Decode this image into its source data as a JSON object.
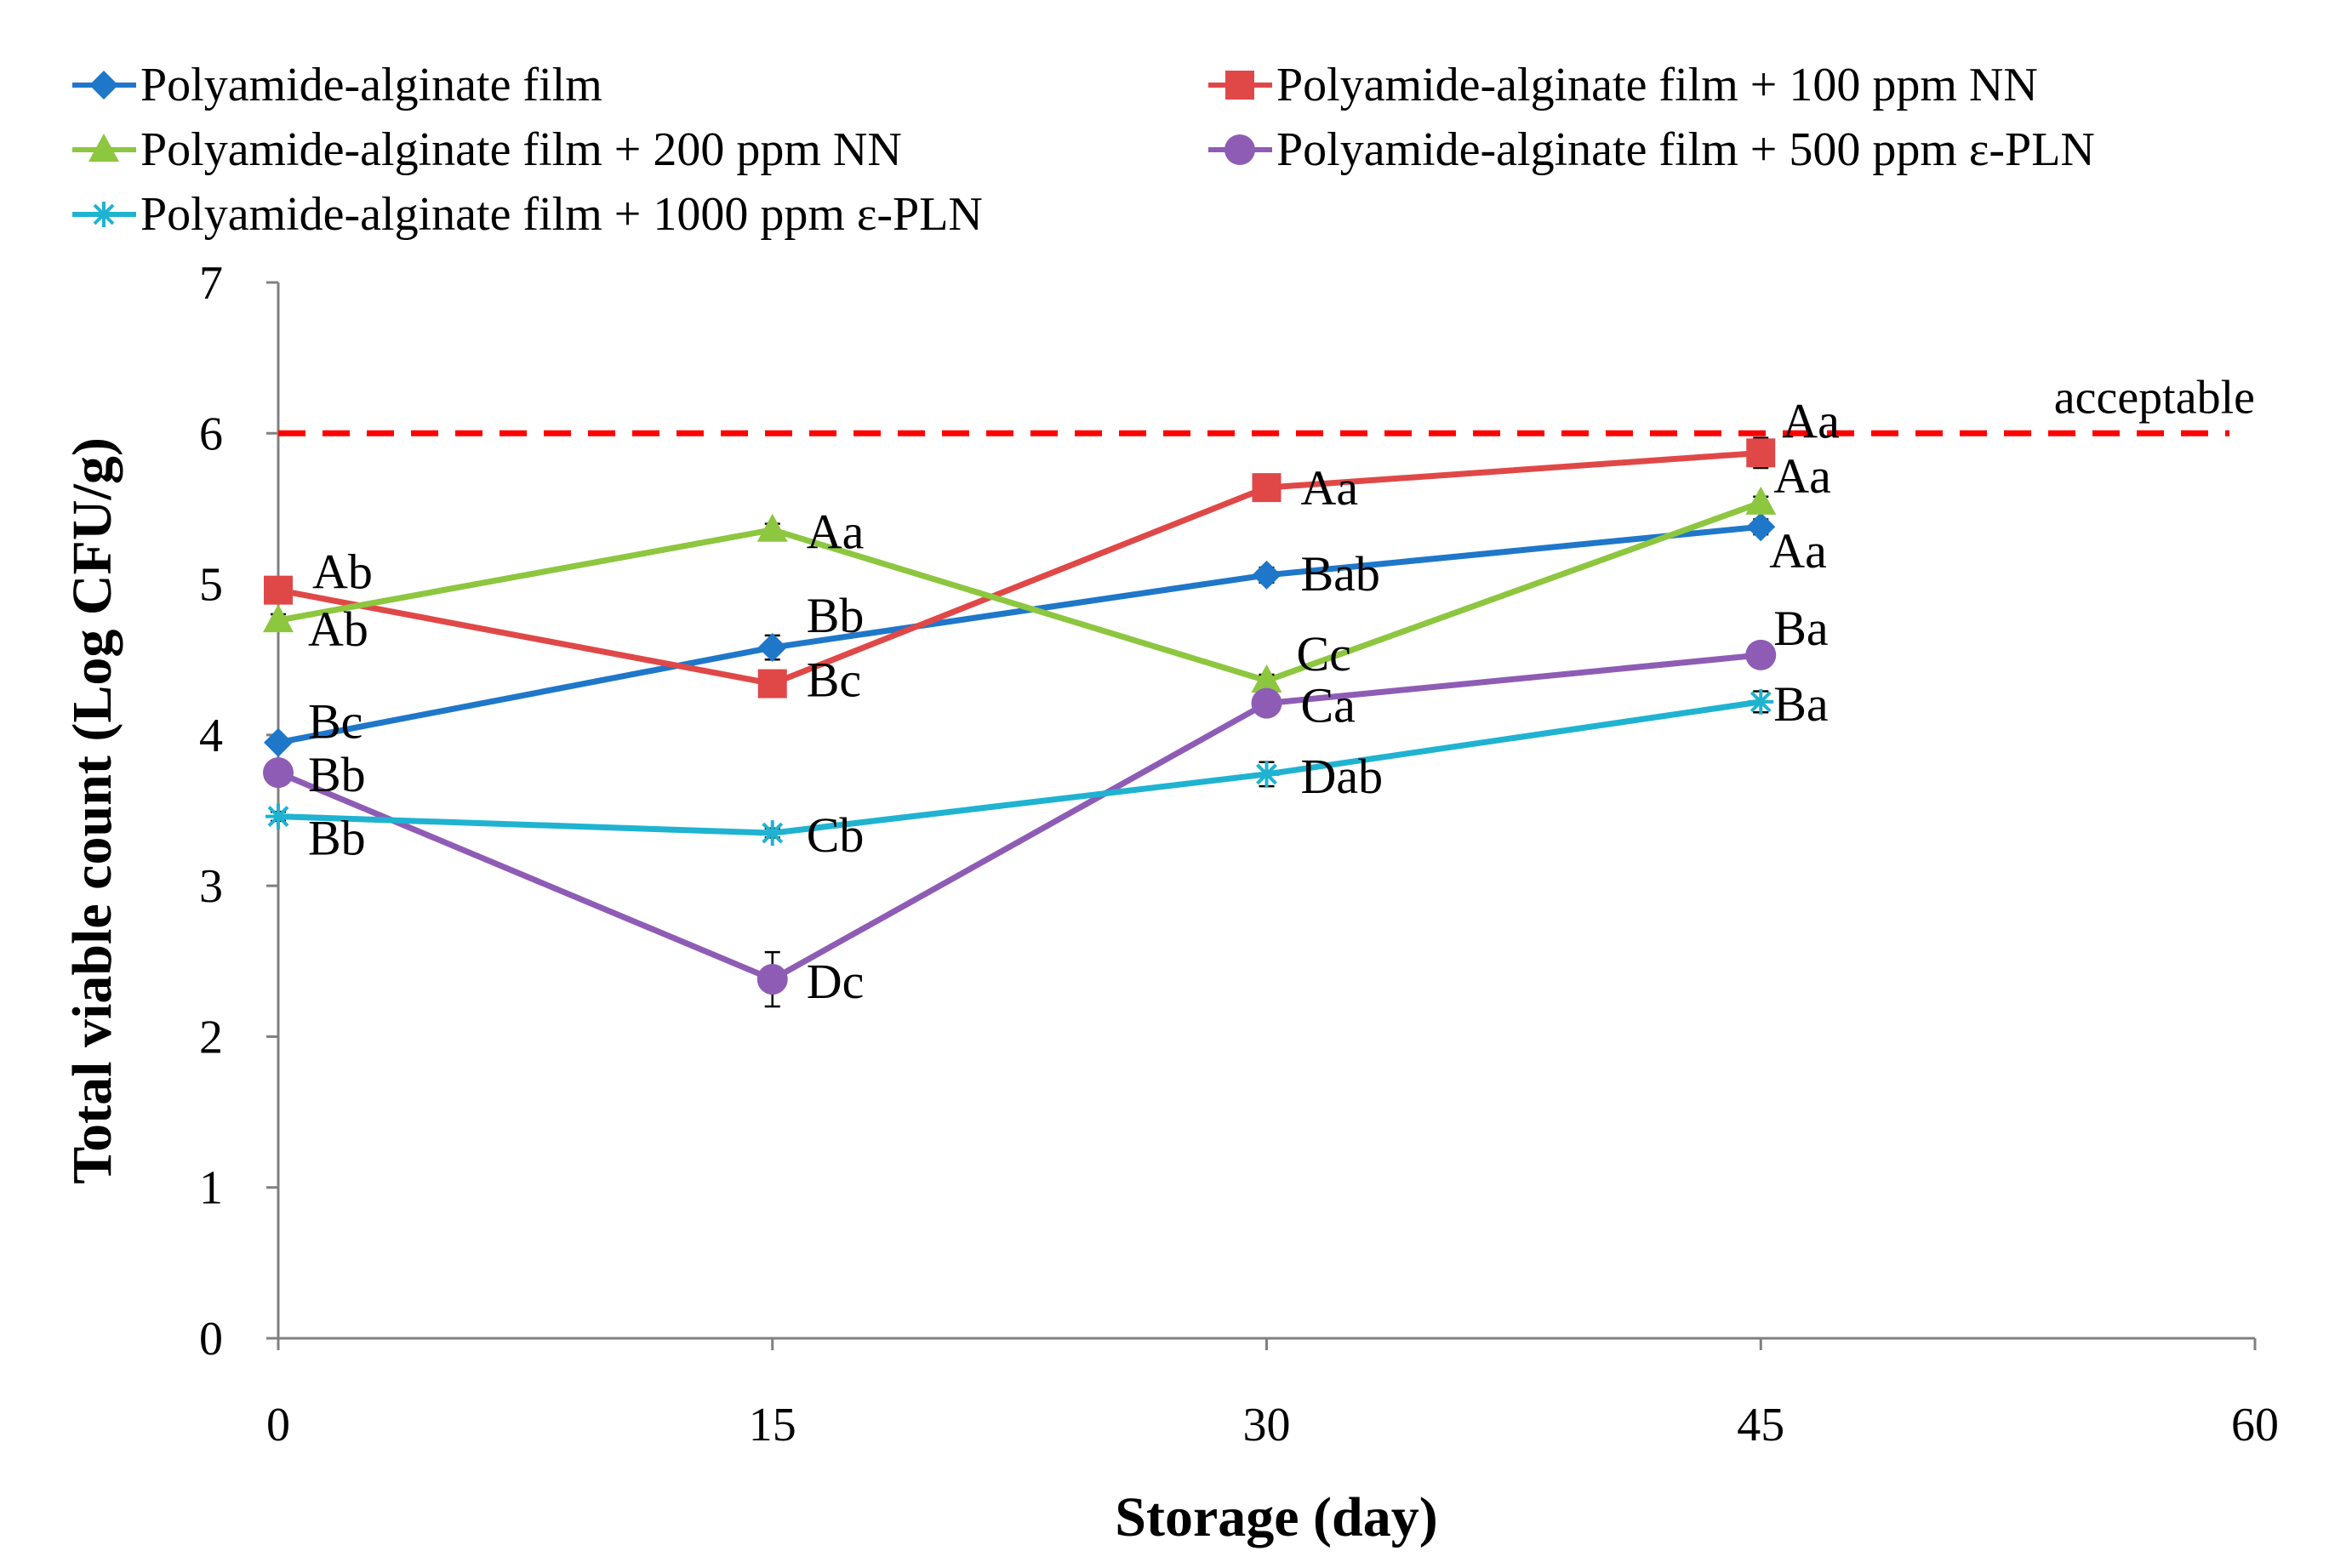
{
  "chart_data": {
    "type": "line",
    "title": "",
    "xlabel": "Storage (day)",
    "ylabel": "Total viable count (Log CFU/g)",
    "xlim": [
      0,
      60
    ],
    "ylim": [
      0,
      7
    ],
    "x_ticks": [
      0,
      15,
      30,
      45,
      60
    ],
    "y_ticks": [
      0,
      1,
      2,
      3,
      4,
      5,
      6,
      7
    ],
    "x": [
      0,
      15,
      30,
      45
    ],
    "grid": false,
    "legend_position": "top",
    "reference_line": {
      "y": 6,
      "label": "acceptable",
      "color": "#ff0000",
      "style": "dashed"
    },
    "series": [
      {
        "name": "Polyamide-alginate film",
        "color": "#1f77c9",
        "marker": "diamond",
        "values": [
          3.95,
          4.58,
          5.06,
          5.38
        ],
        "errors": [
          0.03,
          0.08,
          0.05,
          0.05
        ],
        "labels": [
          "Bc",
          "Bb",
          "Bab",
          "Aa"
        ]
      },
      {
        "name": "Polyamide-alginate film + 100 ppm NN",
        "color": "#e04848",
        "marker": "square",
        "values": [
          4.96,
          4.34,
          5.64,
          5.87
        ],
        "errors": [
          0.04,
          0.04,
          0.04,
          0.1
        ],
        "labels": [
          "Ab",
          "Bc",
          "Aa",
          "Aa"
        ]
      },
      {
        "name": "Polyamide-alginate film + 200 ppm NN",
        "color": "#8dc63f",
        "marker": "triangle",
        "values": [
          4.76,
          5.36,
          4.36,
          5.54
        ],
        "errors": [
          0.04,
          0.04,
          0.04,
          0.04
        ],
        "labels": [
          "Ab",
          "Aa",
          "Cc",
          "Aa"
        ]
      },
      {
        "name": "Polyamide-alginate film + 500 ppm ε-PLN",
        "color": "#8e5cb5",
        "marker": "circle",
        "values": [
          3.75,
          2.38,
          4.21,
          4.53
        ],
        "errors": [
          0.04,
          0.18,
          0.04,
          0.04
        ],
        "labels": [
          "Bb",
          "Dc",
          "Ca",
          "Ba"
        ]
      },
      {
        "name": "Polyamide-alginate film + 1000 ppm ε-PLN",
        "color": "#1fb3d1",
        "marker": "star",
        "values": [
          3.46,
          3.35,
          3.74,
          4.22
        ],
        "errors": [
          0.03,
          0.03,
          0.08,
          0.07
        ],
        "labels": [
          "Bb",
          "Cb",
          "Dab",
          "Ba"
        ]
      }
    ]
  }
}
